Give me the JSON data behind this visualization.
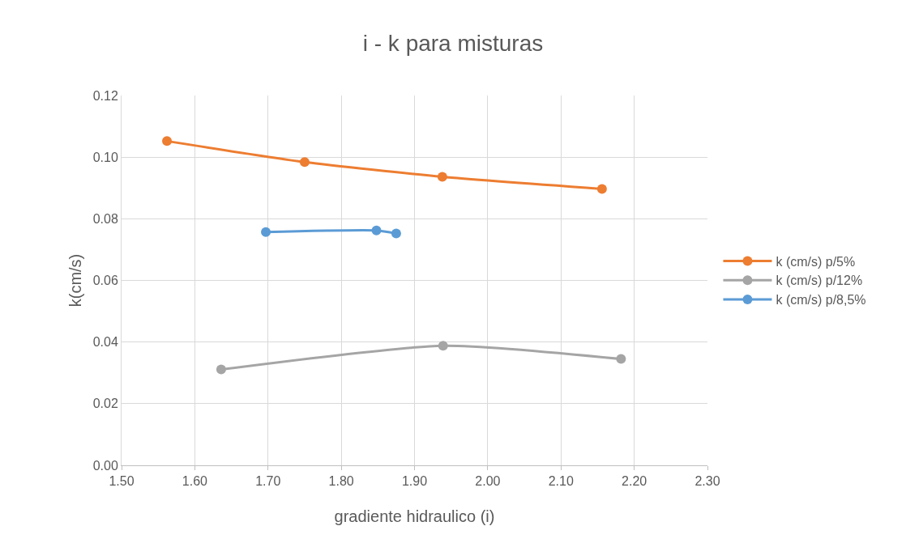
{
  "chart_data": {
    "type": "line",
    "title": "i - k para misturas",
    "xlabel": "gradiente hidraulico (i)",
    "ylabel": "k(cm/s)",
    "xlim": [
      1.5,
      2.3
    ],
    "xticks": [
      {
        "value": 1.5,
        "label": "1.50"
      },
      {
        "value": 1.6,
        "label": "1.60"
      },
      {
        "value": 1.7,
        "label": "1.70"
      },
      {
        "value": 1.8,
        "label": "1.80"
      },
      {
        "value": 1.9,
        "label": "1.90"
      },
      {
        "value": 2.0,
        "label": "2.00"
      },
      {
        "value": 2.1,
        "label": "2.10"
      },
      {
        "value": 2.2,
        "label": "2.20"
      },
      {
        "value": 2.3,
        "label": "2.30"
      }
    ],
    "ylim": [
      0,
      0.12
    ],
    "yticks": [
      {
        "value": 0,
        "label": "0.00"
      },
      {
        "value": 0.02,
        "label": "0.02"
      },
      {
        "value": 0.04,
        "label": "0.04"
      },
      {
        "value": 0.06,
        "label": "0.06"
      },
      {
        "value": 0.08,
        "label": "0.08"
      },
      {
        "value": 0.1,
        "label": "0.10"
      },
      {
        "value": 0.12,
        "label": "0.12"
      }
    ],
    "grid": true,
    "legend": "right",
    "marker": "circle",
    "line_style": "solid",
    "series": [
      {
        "name": "k (cm/s) p/5%",
        "color": "#ed7d31",
        "x": [
          1.562,
          1.75,
          1.938,
          2.156
        ],
        "values": [
          0.1052,
          0.0984,
          0.0936,
          0.0897
        ]
      },
      {
        "name": "k (cm/s) p/12%",
        "color": "#a5a5a5",
        "x": [
          1.636,
          1.939,
          2.182
        ],
        "values": [
          0.0311,
          0.0388,
          0.0345
        ]
      },
      {
        "name": "k (cm/s) p/8,5%",
        "color": "#5b9bd5",
        "x": [
          1.697,
          1.848,
          1.875
        ],
        "values": [
          0.0757,
          0.0762,
          0.0752
        ]
      }
    ]
  }
}
